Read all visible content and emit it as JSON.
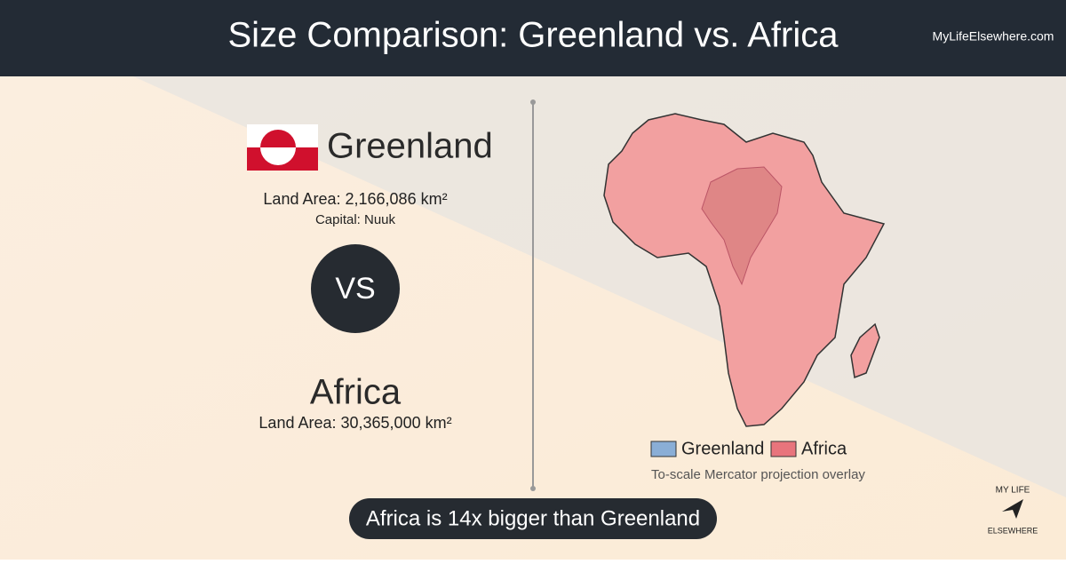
{
  "header": {
    "title": "Size Comparison: Greenland vs. Africa",
    "site": "MyLifeElsewhere.com"
  },
  "left": {
    "country1": {
      "name": "Greenland",
      "area": "Land Area: 2,166,086 km²",
      "capital": "Capital: Nuuk"
    },
    "vs": "VS",
    "country2": {
      "name": "Africa",
      "area": "Land Area: 30,365,000 km²"
    }
  },
  "map": {
    "legend": [
      "Greenland",
      "Africa"
    ],
    "note": "To-scale Mercator projection overlay"
  },
  "banner": "Africa is 14x bigger than Greenland",
  "logo": {
    "top": "MY LIFE",
    "bottom": "ELSEWHERE"
  }
}
